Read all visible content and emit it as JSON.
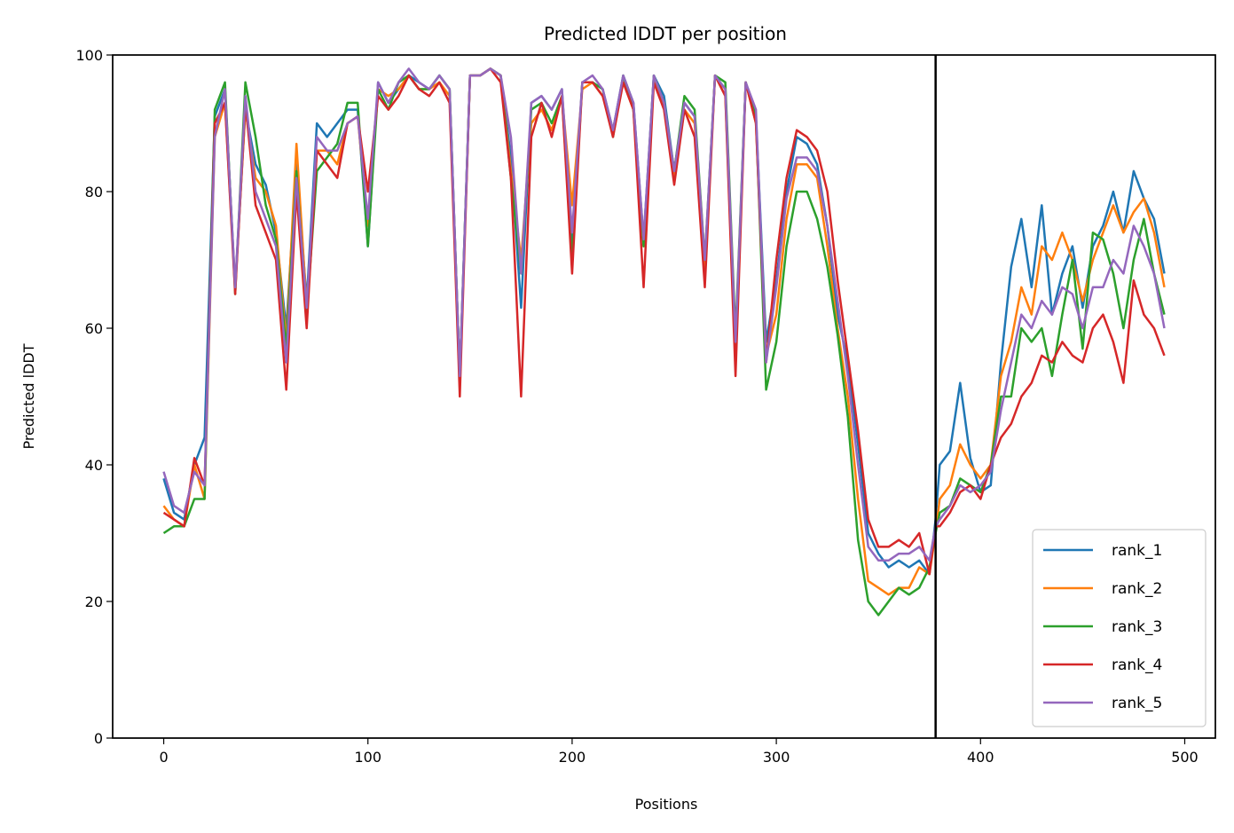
{
  "chart_data": {
    "type": "line",
    "title": "Predicted lDDT per position",
    "xlabel": "Positions",
    "ylabel": "Predicted lDDT",
    "xlim": [
      -25,
      515
    ],
    "ylim": [
      0,
      100
    ],
    "xticks": [
      0,
      100,
      200,
      300,
      400,
      500
    ],
    "yticks": [
      0,
      20,
      40,
      60,
      80,
      100
    ],
    "vline_x": 378,
    "legend_position": "lower right",
    "grid": false,
    "x": [
      0,
      5,
      10,
      15,
      20,
      25,
      30,
      35,
      40,
      45,
      50,
      55,
      60,
      65,
      70,
      75,
      80,
      85,
      90,
      95,
      100,
      105,
      110,
      115,
      120,
      125,
      130,
      135,
      140,
      145,
      150,
      155,
      160,
      165,
      170,
      175,
      180,
      185,
      190,
      195,
      200,
      205,
      210,
      215,
      220,
      225,
      230,
      235,
      240,
      245,
      250,
      255,
      260,
      265,
      270,
      275,
      280,
      285,
      290,
      295,
      300,
      305,
      310,
      315,
      320,
      325,
      330,
      335,
      340,
      345,
      350,
      355,
      360,
      365,
      370,
      375,
      378,
      380,
      385,
      390,
      395,
      400,
      405,
      410,
      415,
      420,
      425,
      430,
      435,
      440,
      445,
      450,
      455,
      460,
      465,
      470,
      475,
      480,
      485,
      490
    ],
    "series": [
      {
        "name": "rank_1",
        "color": "#1f77b4",
        "values": [
          38,
          33,
          32,
          40,
          44,
          91,
          95,
          66,
          92,
          84,
          81,
          74,
          60,
          84,
          64,
          90,
          88,
          90,
          92,
          92,
          72,
          96,
          93,
          95,
          97,
          96,
          95,
          97,
          95,
          53,
          97,
          97,
          98,
          97,
          85,
          63,
          93,
          94,
          92,
          95,
          72,
          96,
          96,
          95,
          89,
          97,
          93,
          73,
          97,
          94,
          83,
          93,
          91,
          69,
          97,
          95,
          57,
          96,
          91,
          58,
          67,
          80,
          88,
          87,
          84,
          75,
          62,
          55,
          43,
          30,
          27,
          25,
          26,
          25,
          26,
          24,
          32,
          40,
          42,
          52,
          41,
          36,
          37,
          55,
          69,
          76,
          66,
          78,
          62,
          68,
          72,
          63,
          72,
          75,
          80,
          74,
          83,
          79,
          76,
          68
        ]
      },
      {
        "name": "rank_2",
        "color": "#ff7f0e",
        "values": [
          34,
          32,
          31,
          40,
          35,
          88,
          93,
          66,
          92,
          82,
          80,
          75,
          58,
          87,
          63,
          86,
          86,
          84,
          90,
          91,
          75,
          95,
          94,
          95,
          97,
          95,
          95,
          96,
          94,
          52,
          97,
          97,
          98,
          97,
          83,
          70,
          90,
          92,
          89,
          94,
          78,
          95,
          96,
          94,
          89,
          96,
          92,
          72,
          96,
          93,
          82,
          92,
          90,
          68,
          97,
          94,
          56,
          96,
          90,
          56,
          62,
          76,
          84,
          84,
          82,
          72,
          60,
          50,
          35,
          23,
          22,
          21,
          22,
          22,
          25,
          24,
          30,
          35,
          37,
          43,
          40,
          38,
          40,
          53,
          58,
          66,
          62,
          72,
          70,
          74,
          70,
          64,
          70,
          74,
          78,
          74,
          77,
          79,
          74,
          66
        ]
      },
      {
        "name": "rank_3",
        "color": "#2ca02c",
        "values": [
          30,
          31,
          31,
          35,
          35,
          92,
          96,
          65,
          96,
          88,
          78,
          73,
          57,
          83,
          62,
          83,
          85,
          87,
          93,
          93,
          72,
          95,
          92,
          96,
          97,
          95,
          95,
          97,
          95,
          53,
          97,
          97,
          98,
          97,
          82,
          68,
          92,
          93,
          90,
          94,
          70,
          96,
          96,
          95,
          88,
          97,
          92,
          72,
          97,
          93,
          83,
          94,
          92,
          70,
          97,
          96,
          59,
          96,
          91,
          51,
          58,
          72,
          80,
          80,
          76,
          69,
          59,
          47,
          29,
          20,
          18,
          20,
          22,
          21,
          22,
          25,
          30,
          33,
          34,
          38,
          37,
          36,
          40,
          50,
          50,
          60,
          58,
          60,
          53,
          62,
          70,
          57,
          74,
          73,
          68,
          60,
          70,
          76,
          68,
          62
        ]
      },
      {
        "name": "rank_4",
        "color": "#d62728",
        "values": [
          33,
          32,
          31,
          41,
          37,
          90,
          93,
          65,
          93,
          78,
          74,
          70,
          51,
          80,
          60,
          86,
          84,
          82,
          90,
          91,
          80,
          94,
          92,
          94,
          97,
          95,
          94,
          96,
          93,
          50,
          97,
          97,
          98,
          96,
          82,
          50,
          88,
          93,
          88,
          94,
          68,
          96,
          96,
          94,
          88,
          96,
          92,
          66,
          96,
          92,
          81,
          92,
          88,
          66,
          97,
          94,
          53,
          96,
          90,
          55,
          70,
          82,
          89,
          88,
          86,
          80,
          67,
          56,
          45,
          32,
          28,
          28,
          29,
          28,
          30,
          24,
          31,
          31,
          33,
          36,
          37,
          35,
          40,
          44,
          46,
          50,
          52,
          56,
          55,
          58,
          56,
          55,
          60,
          62,
          58,
          52,
          67,
          62,
          60,
          56
        ]
      },
      {
        "name": "rank_5",
        "color": "#9467bd",
        "values": [
          39,
          34,
          33,
          39,
          37,
          88,
          95,
          66,
          94,
          80,
          76,
          72,
          55,
          82,
          63,
          88,
          86,
          86,
          90,
          91,
          76,
          96,
          93,
          96,
          98,
          96,
          95,
          97,
          95,
          53,
          97,
          97,
          98,
          97,
          88,
          68,
          93,
          94,
          92,
          95,
          74,
          96,
          97,
          95,
          89,
          97,
          93,
          73,
          97,
          93,
          83,
          93,
          91,
          70,
          97,
          95,
          58,
          96,
          92,
          55,
          66,
          79,
          85,
          85,
          83,
          75,
          64,
          53,
          40,
          28,
          26,
          26,
          27,
          27,
          28,
          26,
          31,
          32,
          34,
          37,
          36,
          37,
          39,
          48,
          55,
          62,
          60,
          64,
          62,
          66,
          65,
          60,
          66,
          66,
          70,
          68,
          75,
          72,
          68,
          60
        ]
      }
    ]
  }
}
